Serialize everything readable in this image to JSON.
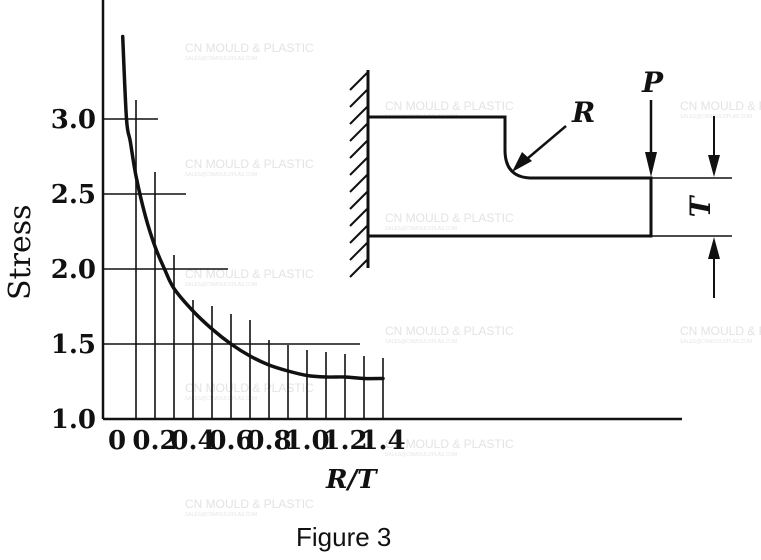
{
  "chart_data": {
    "type": "line",
    "xlabel": "R/T",
    "ylabel": "Stress",
    "xlim": [
      0,
      1.45
    ],
    "ylim": [
      1.0,
      3.5
    ],
    "x_ticks": [
      0,
      0.2,
      0.4,
      0.6,
      0.8,
      1.0,
      1.2,
      1.4
    ],
    "x_tick_labels": [
      "0",
      "0.2",
      "0.4",
      "0.6",
      "0.8",
      "1.0",
      "1.2",
      "1.4"
    ],
    "y_ticks": [
      1.0,
      1.5,
      2.0,
      2.5,
      3.0
    ],
    "y_tick_labels": [
      "1.0",
      "1.5",
      "2.0",
      "2.5",
      "3.0"
    ],
    "grid": true,
    "series": [
      {
        "x": [
          0.03,
          0.05,
          0.07,
          0.1,
          0.15,
          0.2,
          0.25,
          0.3,
          0.4,
          0.5,
          0.6,
          0.7,
          0.8,
          0.9,
          1.0,
          1.1,
          1.2,
          1.3,
          1.4
        ],
        "values": [
          3.55,
          3.0,
          2.85,
          2.62,
          2.35,
          2.15,
          2.0,
          1.87,
          1.72,
          1.6,
          1.5,
          1.42,
          1.36,
          1.32,
          1.29,
          1.28,
          1.28,
          1.27,
          1.27
        ]
      }
    ]
  },
  "diagram": {
    "label_r": "R",
    "label_p": "P",
    "label_t": "T"
  },
  "caption": "Figure 3",
  "watermark": {
    "main": "CN MOULD & PLASTIC",
    "sub": "SALES@CNMOULDPLAS.COM"
  }
}
